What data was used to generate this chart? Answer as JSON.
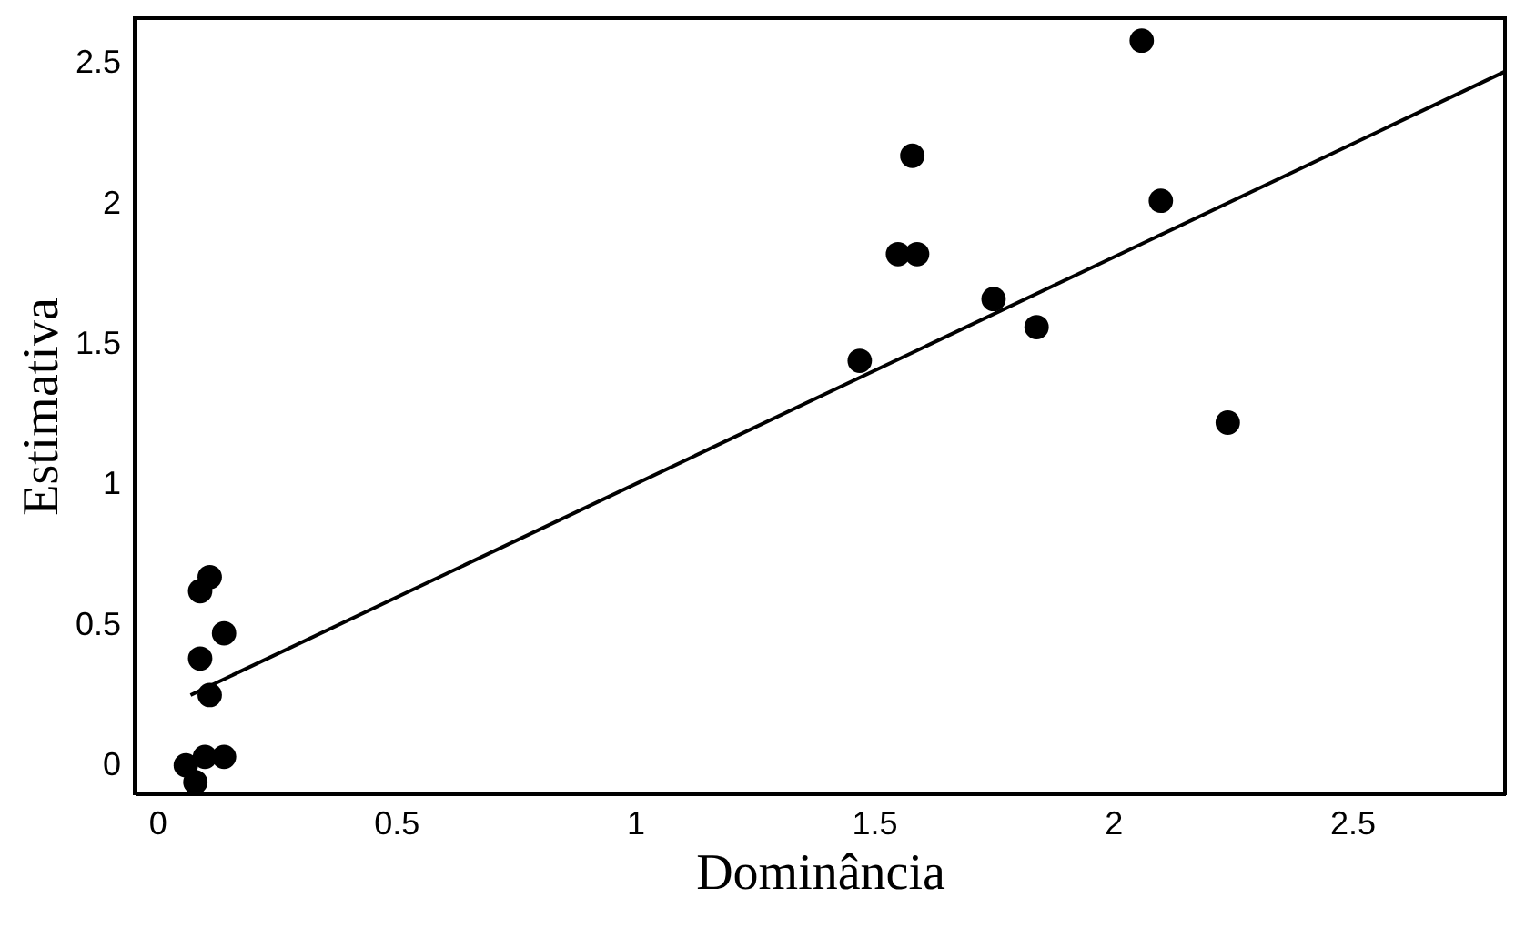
{
  "chart_data": {
    "type": "scatter",
    "xlabel": "Dominância",
    "ylabel": "Estimativa",
    "xlim": [
      -0.047,
      2.82
    ],
    "ylim": [
      -0.1,
      2.66
    ],
    "xticks": [
      0,
      0.5,
      1,
      1.5,
      2,
      2.5
    ],
    "yticks": [
      0,
      0.5,
      1,
      1.5,
      2,
      2.5
    ],
    "grid": false,
    "series": [
      {
        "color": "#000000",
        "marker": "circle",
        "x": [
          0.06,
          0.08,
          0.1,
          0.14,
          0.09,
          0.11,
          0.09,
          0.14,
          0.11,
          1.47,
          1.55,
          1.59,
          1.58,
          1.75,
          1.84,
          2.06,
          2.1,
          2.24
        ],
        "values": [
          0.0,
          -0.06,
          0.03,
          0.03,
          0.62,
          0.67,
          0.38,
          0.47,
          0.25,
          1.44,
          1.82,
          1.82,
          2.17,
          1.66,
          1.56,
          2.58,
          2.01,
          1.22
        ]
      },
      {
        "type": "line",
        "color": "#000000",
        "x": [
          0.07,
          2.82
        ],
        "values": [
          0.25,
          2.47
        ]
      }
    ]
  }
}
